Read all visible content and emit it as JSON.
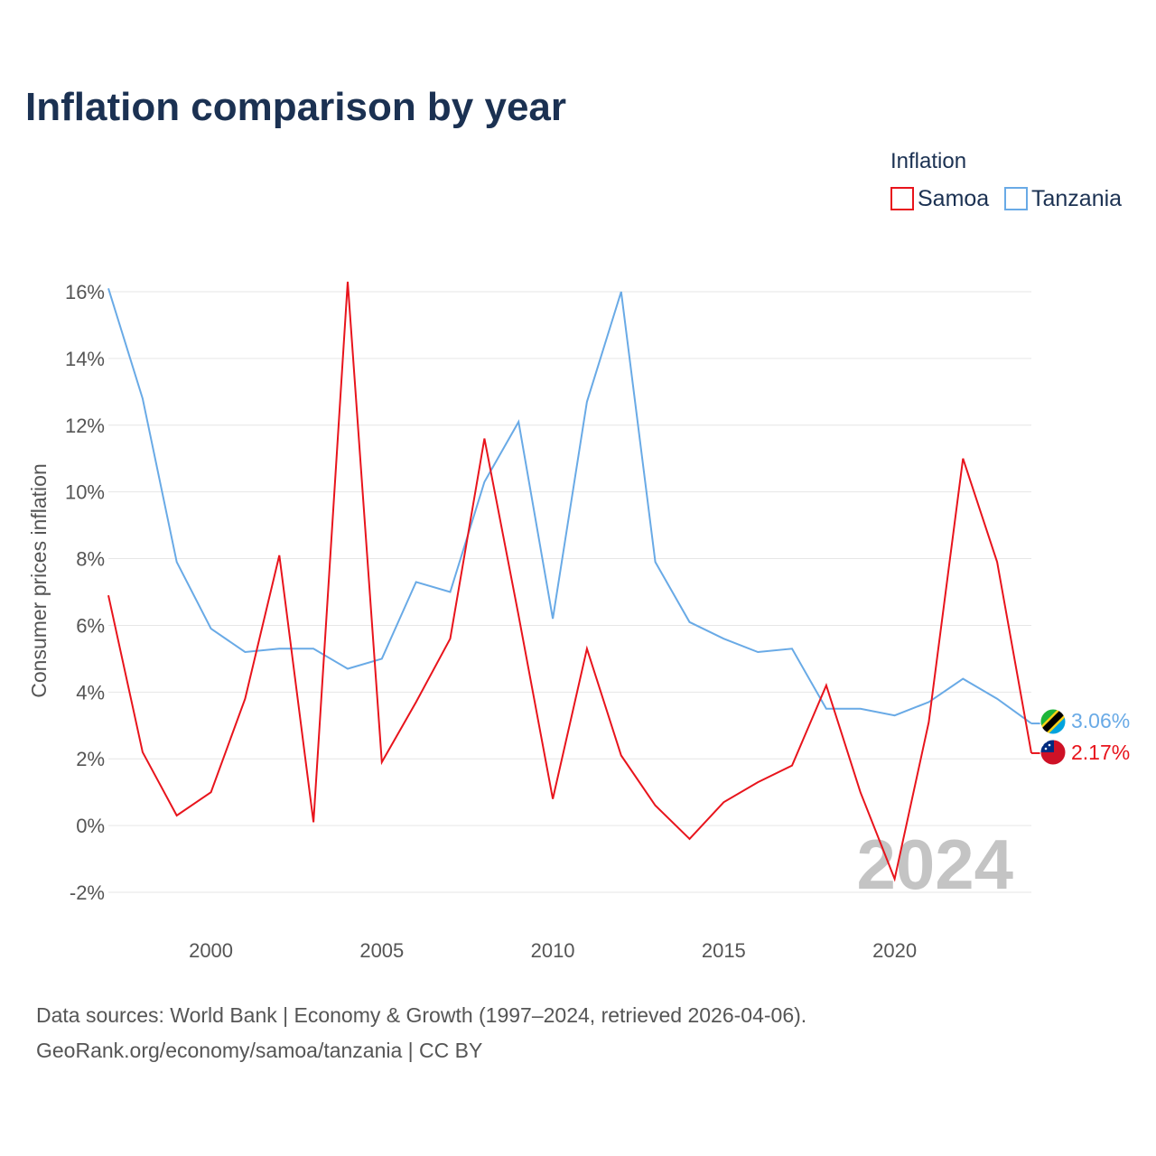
{
  "title": "Inflation comparison by year",
  "legend": {
    "title": "Inflation",
    "items": [
      {
        "name": "Samoa",
        "color": "#e8141c"
      },
      {
        "name": "Tanzania",
        "color": "#69aae6"
      }
    ]
  },
  "watermark_year": "2024",
  "end_labels": {
    "tanzania": "3.06%",
    "samoa": "2.17%"
  },
  "source": {
    "line1": "Data sources: World Bank | Economy & Growth (1997–2024, retrieved 2026-04-06).",
    "line2": "GeoRank.org/economy/samoa/tanzania | CC BY"
  },
  "colors": {
    "samoa": "#e8141c",
    "tanzania": "#69aae6",
    "title": "#1b3152"
  },
  "chart_data": {
    "type": "line",
    "title": "Inflation comparison by year",
    "xlabel": "",
    "ylabel": "Consumer prices inflation",
    "x": [
      1997,
      1998,
      1999,
      2000,
      2001,
      2002,
      2003,
      2004,
      2005,
      2006,
      2007,
      2008,
      2009,
      2010,
      2011,
      2012,
      2013,
      2014,
      2015,
      2016,
      2017,
      2018,
      2019,
      2020,
      2021,
      2022,
      2023,
      2024
    ],
    "xlim": [
      1997,
      2024
    ],
    "ylim": [
      -2,
      16
    ],
    "yticks": [
      -2,
      0,
      2,
      4,
      6,
      8,
      10,
      12,
      14,
      16
    ],
    "ytick_labels": [
      "-2%",
      "0%",
      "2%",
      "4%",
      "6%",
      "8%",
      "10%",
      "12%",
      "14%",
      "16%"
    ],
    "xticks": [
      2000,
      2005,
      2010,
      2015,
      2020
    ],
    "xtick_labels": [
      "2000",
      "2005",
      "2010",
      "2015",
      "2020"
    ],
    "grid": true,
    "legend_position": "top-right",
    "series": [
      {
        "name": "Samoa",
        "color": "#e8141c",
        "values": [
          6.9,
          2.2,
          0.3,
          1.0,
          3.8,
          8.1,
          0.1,
          16.3,
          1.9,
          3.7,
          5.6,
          11.6,
          6.3,
          0.8,
          5.3,
          2.1,
          0.6,
          -0.4,
          0.7,
          1.3,
          1.8,
          4.2,
          1.0,
          -1.6,
          3.1,
          11.0,
          7.9,
          2.17
        ]
      },
      {
        "name": "Tanzania",
        "color": "#69aae6",
        "values": [
          16.1,
          12.8,
          7.9,
          5.9,
          5.2,
          5.3,
          5.3,
          4.7,
          5.0,
          7.3,
          7.0,
          10.3,
          12.1,
          6.2,
          12.7,
          16.0,
          7.9,
          6.1,
          5.6,
          5.2,
          5.3,
          3.5,
          3.5,
          3.3,
          3.7,
          4.4,
          3.8,
          3.06
        ]
      }
    ]
  }
}
